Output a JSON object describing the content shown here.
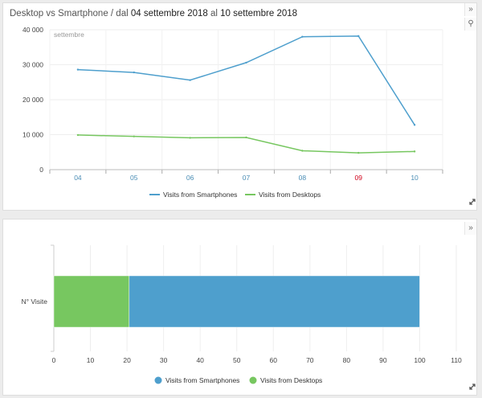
{
  "panels": [
    {
      "title_prefix": "Desktop vs Smartphone / dal",
      "date_from": "04 settembre 2018",
      "title_mid": "al",
      "date_to": "10 settembre 2018"
    },
    {
      "title_prefix": "",
      "date_from": "",
      "title_mid": "",
      "date_to": ""
    }
  ],
  "icons": {
    "collapse": "chevrons-right-icon",
    "pin": "pin-icon",
    "expand": "expand-diagonal-icon"
  },
  "colors": {
    "smartphones": "#4e9fcd",
    "desktops": "#77c760",
    "weekend": "#d0021b",
    "tick_blue": "#4a8db5"
  },
  "chart_data": [
    {
      "type": "line",
      "annotation": "settembre",
      "categories": [
        "04",
        "05",
        "06",
        "07",
        "08",
        "09",
        "10"
      ],
      "highlight_category": "09",
      "ylim": [
        0,
        40000
      ],
      "yticks": [
        0,
        10000,
        20000,
        30000,
        40000
      ],
      "ytick_labels": [
        "0",
        "10 000",
        "20 000",
        "30 000",
        "40 000"
      ],
      "series": [
        {
          "name": "Visits from Smartphones",
          "values": [
            28600,
            27800,
            25600,
            30600,
            38000,
            38200,
            12800
          ]
        },
        {
          "name": "Visits from Desktops",
          "values": [
            9900,
            9500,
            9100,
            9200,
            5400,
            4800,
            5200
          ]
        }
      ],
      "legend_position": "bottom"
    },
    {
      "type": "bar",
      "orientation": "horizontal",
      "stacked": true,
      "categories": [
        "N° Visite"
      ],
      "xlim": [
        0,
        110
      ],
      "xticks": [
        0,
        10,
        20,
        30,
        40,
        50,
        60,
        70,
        80,
        90,
        100,
        110
      ],
      "series": [
        {
          "name": "Visits from Desktops",
          "values": [
            20.6
          ]
        },
        {
          "name": "Visits from Smartphones",
          "values": [
            79.4
          ]
        }
      ],
      "legend_order": [
        "Visits from Smartphones",
        "Visits from Desktops"
      ],
      "legend_position": "bottom"
    }
  ]
}
